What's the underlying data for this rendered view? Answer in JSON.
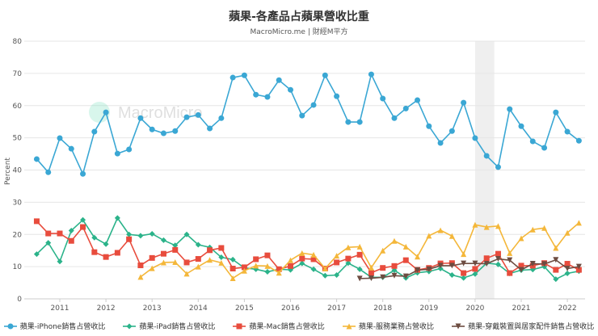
{
  "chart_data": {
    "type": "line",
    "title": "蘋果-各產品占蘋果營收比重",
    "subtitle": "MacroMicro.me | 財經M平方",
    "watermark": "MacroMicro",
    "ylabel": "Percent",
    "xlabel": "",
    "ylim": [
      0,
      80
    ],
    "yticks": [
      0,
      10,
      20,
      30,
      40,
      50,
      60,
      70,
      80
    ],
    "xticks": [
      "2011",
      "2012",
      "2013",
      "2014",
      "2015",
      "2016",
      "2017",
      "2018",
      "2019",
      "2020",
      "2021",
      "2022"
    ],
    "grid": true,
    "legend_position": "bottom",
    "recession_band": [
      "2020-01",
      "2020-06"
    ],
    "x": [
      "2010-07",
      "2010-10",
      "2011-01",
      "2011-04",
      "2011-07",
      "2011-10",
      "2012-01",
      "2012-04",
      "2012-07",
      "2012-10",
      "2013-01",
      "2013-04",
      "2013-07",
      "2013-10",
      "2014-01",
      "2014-04",
      "2014-07",
      "2014-10",
      "2015-01",
      "2015-04",
      "2015-07",
      "2015-10",
      "2016-01",
      "2016-04",
      "2016-07",
      "2016-10",
      "2017-01",
      "2017-04",
      "2017-07",
      "2017-10",
      "2018-01",
      "2018-04",
      "2018-07",
      "2018-10",
      "2019-01",
      "2019-04",
      "2019-07",
      "2019-10",
      "2020-01",
      "2020-04",
      "2020-07",
      "2020-10",
      "2021-01",
      "2021-04",
      "2021-07",
      "2021-10",
      "2022-01",
      "2022-04"
    ],
    "series": [
      {
        "name": "蘋果-iPhone銷售占營收比",
        "color": "#3aa7d4",
        "marker": "circle",
        "values": [
          43.4,
          39.3,
          49.9,
          46.6,
          38.8,
          51.9,
          57.9,
          45.1,
          46.4,
          56.1,
          52.6,
          51.4,
          52.1,
          56.4,
          57.1,
          52.9,
          56.1,
          68.7,
          69.4,
          63.4,
          62.7,
          67.9,
          64.9,
          56.9,
          60.2,
          69.4,
          62.9,
          54.9,
          54.9,
          69.7,
          62.2,
          56.1,
          59.1,
          61.7,
          53.6,
          48.4,
          52.1,
          60.9,
          49.9,
          44.4,
          40.9,
          58.9,
          53.6,
          48.9,
          46.9,
          57.9,
          51.9,
          49.1
        ]
      },
      {
        "name": "蘋果-iPad銷售占營收比",
        "color": "#2bb38a",
        "marker": "diamond",
        "values": [
          13.9,
          17.4,
          11.6,
          21.2,
          24.5,
          19.0,
          17.0,
          25.1,
          20.0,
          19.6,
          20.2,
          18.2,
          16.6,
          20.0,
          16.8,
          16.0,
          12.9,
          12.2,
          9.6,
          9.2,
          8.4,
          9.2,
          9.0,
          11.0,
          9.2,
          7.2,
          7.4,
          11.1,
          9.2,
          6.7,
          6.7,
          8.9,
          6.5,
          8.1,
          8.5,
          9.4,
          7.4,
          6.5,
          7.7,
          11.1,
          10.7,
          7.9,
          8.9,
          9.1,
          10.0,
          6.1,
          7.9,
          8.6
        ]
      },
      {
        "name": "蘋果-Mac銷售占營收比",
        "color": "#e84c3d",
        "marker": "square",
        "values": [
          24.1,
          20.3,
          20.3,
          18.0,
          22.3,
          14.5,
          13.0,
          14.3,
          18.5,
          10.4,
          12.7,
          14.0,
          15.2,
          11.3,
          12.4,
          15.1,
          15.8,
          9.4,
          9.8,
          12.3,
          13.5,
          9.2,
          10.2,
          12.5,
          12.3,
          9.4,
          11.3,
          12.5,
          13.7,
          8.1,
          9.6,
          10.2,
          12.0,
          9.0,
          9.6,
          11.0,
          11.1,
          8.0,
          9.3,
          12.6,
          14.0,
          8.0,
          10.3,
          10.3,
          11.1,
          9.0,
          10.9,
          9.0
        ]
      },
      {
        "name": "蘋果-服務業務占營收比",
        "color": "#f4b73a",
        "marker": "triangle-up",
        "values": [
          null,
          null,
          null,
          null,
          null,
          null,
          null,
          null,
          null,
          6.8,
          9.5,
          11.3,
          11.4,
          7.8,
          10.0,
          12.1,
          11.2,
          6.4,
          8.7,
          10.3,
          10.2,
          8.1,
          12.0,
          14.2,
          13.7,
          9.4,
          13.4,
          16.0,
          16.2,
          9.7,
          15.0,
          18.0,
          16.2,
          13.1,
          19.6,
          21.3,
          19.5,
          13.9,
          23.0,
          22.3,
          22.6,
          14.2,
          18.8,
          21.5,
          22.0,
          15.8,
          20.5,
          23.6
        ]
      },
      {
        "name": "蘋果-穿戴裝置與居家配件銷售占營收比",
        "color": "#6d4c41",
        "marker": "triangle-down",
        "values": [
          null,
          null,
          null,
          null,
          null,
          null,
          null,
          null,
          null,
          null,
          null,
          null,
          null,
          null,
          null,
          null,
          null,
          null,
          null,
          null,
          null,
          null,
          null,
          null,
          null,
          null,
          null,
          null,
          6.3,
          6.4,
          6.7,
          7.2,
          7.0,
          8.9,
          9.2,
          10.3,
          10.3,
          11.0,
          11.0,
          10.9,
          12.4,
          12.0,
          9.0,
          10.9,
          10.8,
          12.1,
          9.4,
          10.0
        ]
      }
    ]
  }
}
